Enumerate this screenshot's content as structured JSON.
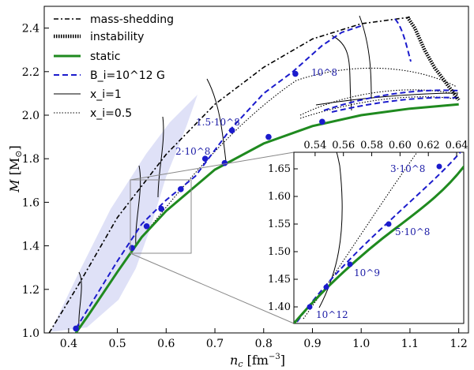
{
  "chart_data": {
    "type": "line",
    "xlabel": "n_c [fm^-3]",
    "ylabel": "M [M_⊙]",
    "xlim": [
      0.35,
      1.22
    ],
    "ylim": [
      1.0,
      2.5
    ],
    "xticks": [
      "0.4",
      "0.5",
      "0.6",
      "0.7",
      "0.8",
      "0.9",
      "1.0",
      "1.1",
      "1.2"
    ],
    "yticks": [
      "1.0",
      "1.2",
      "1.4",
      "1.6",
      "1.8",
      "2.0",
      "2.2",
      "2.4"
    ],
    "legend": [
      {
        "label": "mass-shedding",
        "style": "dashdot"
      },
      {
        "label": "instability",
        "style": "thick-dotted"
      },
      {
        "label": "static",
        "style": "green-solid"
      },
      {
        "label": "B_i=10^12 G",
        "style": "blue-dashed"
      },
      {
        "label": "x_i=1",
        "style": "thin-solid"
      },
      {
        "label": "x_i=0.5",
        "style": "thin-dotted"
      }
    ],
    "colors": {
      "static": "#1f8a1f",
      "field": "#1b1bcc",
      "shade": "#d7d9f5",
      "black": "#000000"
    },
    "series": [
      {
        "name": "static",
        "points": [
          [
            0.415,
            1.0
          ],
          [
            0.44,
            1.08
          ],
          [
            0.5,
            1.28
          ],
          [
            0.55,
            1.44
          ],
          [
            0.6,
            1.56
          ],
          [
            0.7,
            1.75
          ],
          [
            0.8,
            1.87
          ],
          [
            0.9,
            1.95
          ],
          [
            1.0,
            2.0
          ],
          [
            1.1,
            2.03
          ],
          [
            1.2,
            2.05
          ]
        ]
      },
      {
        "name": "B_i=10^12 G",
        "points": [
          [
            0.415,
            1.02
          ],
          [
            0.5,
            1.33
          ],
          [
            0.55,
            1.5
          ],
          [
            0.6,
            1.61
          ],
          [
            0.66,
            1.72
          ],
          [
            0.73,
            1.93
          ],
          [
            0.8,
            2.1
          ],
          [
            0.86,
            2.2
          ],
          [
            0.92,
            2.32
          ],
          [
            0.96,
            2.38
          ],
          [
            1.0,
            2.41
          ]
        ]
      },
      {
        "name": "mass-shedding",
        "points": [
          [
            0.36,
            1.0
          ],
          [
            0.42,
            1.22
          ],
          [
            0.5,
            1.53
          ],
          [
            0.6,
            1.82
          ],
          [
            0.7,
            2.05
          ],
          [
            0.8,
            2.22
          ],
          [
            0.9,
            2.35
          ],
          [
            1.0,
            2.42
          ],
          [
            1.1,
            2.45
          ]
        ]
      },
      {
        "name": "instability",
        "points": [
          [
            1.095,
            2.45
          ],
          [
            1.11,
            2.4
          ],
          [
            1.13,
            2.3
          ],
          [
            1.15,
            2.22
          ],
          [
            1.17,
            2.16
          ],
          [
            1.19,
            2.1
          ],
          [
            1.2,
            2.07
          ]
        ]
      }
    ],
    "markers": [
      [
        0.415,
        1.02
      ],
      [
        0.53,
        1.39
      ],
      [
        0.56,
        1.49
      ],
      [
        0.59,
        1.57
      ],
      [
        0.63,
        1.66
      ],
      [
        0.68,
        1.8
      ],
      [
        0.735,
        1.93
      ],
      [
        0.865,
        2.19
      ],
      [
        0.72,
        1.78
      ],
      [
        0.81,
        1.9
      ],
      [
        0.92,
        1.97
      ]
    ],
    "annotations": [
      "10^8",
      "1.5·10^8",
      "2·10^8"
    ],
    "inset": {
      "xlim": [
        0.525,
        0.645
      ],
      "ylim": [
        1.37,
        1.68
      ],
      "xticks": [
        "0.54",
        "0.56",
        "0.58",
        "0.60",
        "0.62",
        "0.64"
      ],
      "yticks": [
        "1.40",
        "1.45",
        "1.50",
        "1.55",
        "1.60",
        "1.65"
      ],
      "annotations": [
        "3·10^8",
        "5·10^8",
        "10^9",
        "10^12"
      ]
    }
  }
}
